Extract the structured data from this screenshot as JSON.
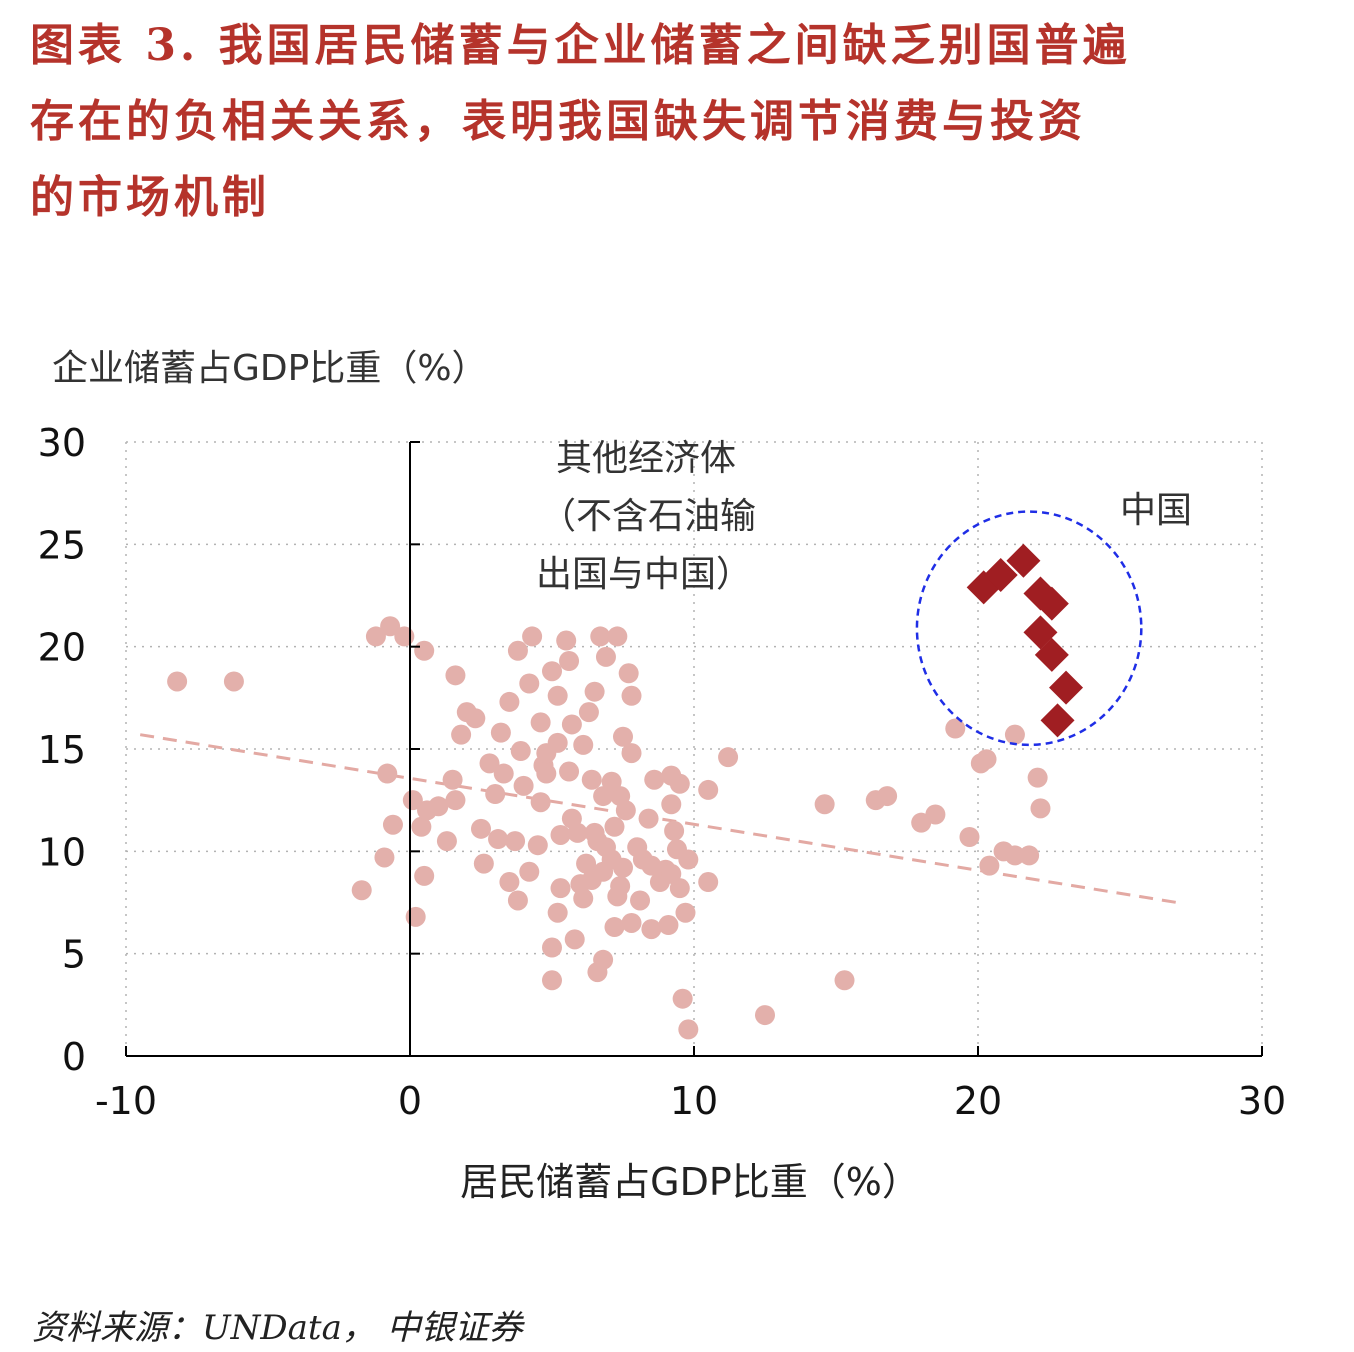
{
  "title_lines": [
    "图表 3. 我国居民储蓄与企业储蓄之间缺乏别国普遍",
    "存在的负相关关系，表明我国缺失调节消费与投资",
    "的市场机制"
  ],
  "source": "资料来源：UNData， 中银证券",
  "chart_data": {
    "type": "scatter",
    "ylabel": "企业储蓄占GDP比重（%）",
    "xlabel": "居民储蓄占GDP比重（%）",
    "xlim": [
      -10,
      30
    ],
    "ylim": [
      0,
      30
    ],
    "xticks": [
      "-10",
      "0",
      "10",
      "20",
      "30"
    ],
    "yticks": [
      "0",
      "5",
      "10",
      "15",
      "20",
      "25",
      "30"
    ],
    "grid": true,
    "annotations": {
      "other_label": [
        "其他经济体",
        "（不含石油输",
        "出国与中国）"
      ],
      "china_label": "中国"
    },
    "colors": {
      "other": "#e3b0ab",
      "china": "#a01e22",
      "trend": "#e3a9a3",
      "circle": "#1f2ee6"
    },
    "trendline": {
      "x": [
        -9.5,
        27
      ],
      "y": [
        15.7,
        7.5
      ]
    },
    "china_circle": {
      "cx": 21.8,
      "cy": 20.9,
      "rx": 3.95,
      "ry": 5.7
    },
    "series": [
      {
        "marker": "circle",
        "points": [
          [
            -8.2,
            18.3
          ],
          [
            -6.2,
            18.3
          ],
          [
            -1.2,
            20.5
          ],
          [
            -0.7,
            21
          ],
          [
            -0.2,
            20.5
          ],
          [
            0.5,
            19.8
          ],
          [
            -1.7,
            8.1
          ],
          [
            -0.9,
            9.7
          ],
          [
            -0.6,
            11.3
          ],
          [
            -0.8,
            13.8
          ],
          [
            0.1,
            12.5
          ],
          [
            0.4,
            11.2
          ],
          [
            0.6,
            12
          ],
          [
            1,
            12.2
          ],
          [
            1.5,
            13.5
          ],
          [
            1.3,
            10.5
          ],
          [
            0.5,
            8.8
          ],
          [
            0.2,
            6.8
          ],
          [
            1.6,
            12.5
          ],
          [
            1.8,
            15.7
          ],
          [
            2,
            16.8
          ],
          [
            1.6,
            18.6
          ],
          [
            2.3,
            16.5
          ],
          [
            2.8,
            14.3
          ],
          [
            3.2,
            15.8
          ],
          [
            3.5,
            17.3
          ],
          [
            3.8,
            19.8
          ],
          [
            4.3,
            20.5
          ],
          [
            4.2,
            18.2
          ],
          [
            3.9,
            14.9
          ],
          [
            4.7,
            14.2
          ],
          [
            5.2,
            15.3
          ],
          [
            5.7,
            16.2
          ],
          [
            6.3,
            16.8
          ],
          [
            5.2,
            17.6
          ],
          [
            5,
            18.8
          ],
          [
            5.6,
            19.3
          ],
          [
            5.5,
            20.3
          ],
          [
            6.7,
            20.5
          ],
          [
            7.3,
            20.5
          ],
          [
            6.9,
            19.5
          ],
          [
            7.7,
            18.7
          ],
          [
            7.8,
            17.6
          ],
          [
            6.5,
            17.8
          ],
          [
            4.6,
            16.3
          ],
          [
            4.8,
            13.8
          ],
          [
            5.6,
            13.9
          ],
          [
            6.4,
            13.5
          ],
          [
            7.4,
            12.7
          ],
          [
            7.1,
            13.4
          ],
          [
            7.8,
            14.8
          ],
          [
            8.6,
            13.5
          ],
          [
            9.2,
            13.7
          ],
          [
            9.5,
            13.3
          ],
          [
            9.2,
            12.3
          ],
          [
            10.5,
            13
          ],
          [
            11.2,
            14.6
          ],
          [
            3,
            12.8
          ],
          [
            2.5,
            11.1
          ],
          [
            3.7,
            10.5
          ],
          [
            4.5,
            10.3
          ],
          [
            5.3,
            10.8
          ],
          [
            5.9,
            10.9
          ],
          [
            6.6,
            10.5
          ],
          [
            7.2,
            11.2
          ],
          [
            7.6,
            12
          ],
          [
            8.4,
            11.6
          ],
          [
            9.3,
            11
          ],
          [
            9.4,
            10.1
          ],
          [
            8.2,
            9.6
          ],
          [
            7.5,
            9.2
          ],
          [
            6.8,
            9
          ],
          [
            6.4,
            8.6
          ],
          [
            5.3,
            8.2
          ],
          [
            4.2,
            9
          ],
          [
            3.5,
            8.5
          ],
          [
            3.8,
            7.6
          ],
          [
            5.2,
            7
          ],
          [
            6.1,
            7.7
          ],
          [
            7.3,
            7.8
          ],
          [
            8.1,
            7.6
          ],
          [
            8.8,
            8.5
          ],
          [
            9.5,
            8.2
          ],
          [
            9.8,
            9.6
          ],
          [
            10.5,
            8.5
          ],
          [
            9.7,
            7
          ],
          [
            9.1,
            6.4
          ],
          [
            8.5,
            6.2
          ],
          [
            7.8,
            6.5
          ],
          [
            7.2,
            6.3
          ],
          [
            6.8,
            4.7
          ],
          [
            6.6,
            4.1
          ],
          [
            5.8,
            5.7
          ],
          [
            5,
            5.3
          ],
          [
            5,
            3.7
          ],
          [
            9.6,
            2.8
          ],
          [
            9.8,
            1.3
          ],
          [
            12.5,
            2
          ],
          [
            15.3,
            3.7
          ],
          [
            14.6,
            12.3
          ],
          [
            16.4,
            12.5
          ],
          [
            16.8,
            12.7
          ],
          [
            18,
            11.4
          ],
          [
            18.5,
            11.8
          ],
          [
            19.7,
            10.7
          ],
          [
            20.1,
            14.3
          ],
          [
            20.3,
            14.5
          ],
          [
            19.2,
            16
          ],
          [
            20.4,
            9.3
          ],
          [
            20.9,
            10
          ],
          [
            21.3,
            9.8
          ],
          [
            21.8,
            9.8
          ],
          [
            22.1,
            13.6
          ],
          [
            22.2,
            12.1
          ],
          [
            21.3,
            15.7
          ],
          [
            2.6,
            9.4
          ],
          [
            3.1,
            10.6
          ],
          [
            4.6,
            12.4
          ],
          [
            6,
            8.4
          ],
          [
            6.9,
            10.2
          ],
          [
            8,
            10.2
          ],
          [
            9,
            9.1
          ],
          [
            7.4,
            8.3
          ],
          [
            6.2,
            9.4
          ],
          [
            5.7,
            11.6
          ],
          [
            4.8,
            14.8
          ],
          [
            6.1,
            15.2
          ],
          [
            7.5,
            15.6
          ],
          [
            6.8,
            12.7
          ],
          [
            6.5,
            10.9
          ],
          [
            7.1,
            9.6
          ],
          [
            8.5,
            9.3
          ],
          [
            9.2,
            8.9
          ],
          [
            4,
            13.2
          ],
          [
            3.3,
            13.8
          ]
        ]
      },
      {
        "name": "中国",
        "marker": "diamond",
        "points": [
          [
            20.2,
            22.9
          ],
          [
            20.8,
            23.5
          ],
          [
            21.6,
            24.2
          ],
          [
            22.2,
            22.6
          ],
          [
            22.6,
            22.1
          ],
          [
            22.2,
            20.7
          ],
          [
            22.6,
            19.6
          ],
          [
            23.1,
            18
          ],
          [
            22.8,
            16.4
          ]
        ]
      }
    ]
  }
}
